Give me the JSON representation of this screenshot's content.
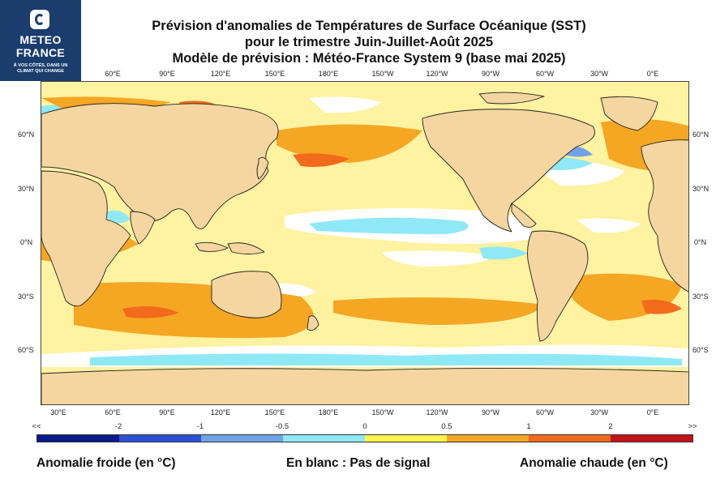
{
  "logo": {
    "brand_line1": "METEO",
    "brand_line2": "FRANCE",
    "tagline": "À VOS CÔTÉS, DANS UN CLIMAT QUI CHANGE"
  },
  "title": {
    "line1": "Prévision d'anomalies de Températures de Surface Océanique (SST)",
    "line2": "pour le trimestre Juin-Juillet-Août 2025",
    "line3": "Modèle de prévision : Météo-France System 9 (base mai 2025)"
  },
  "map": {
    "top_lon_labels": [
      "60°E",
      "90°E",
      "120°E",
      "150°E",
      "180°E",
      "150°W",
      "120°W",
      "90°W",
      "60°W",
      "30°W",
      "0°E"
    ],
    "bottom_lon_labels": [
      "30°E",
      "60°E",
      "90°E",
      "120°E",
      "150°E",
      "180°E",
      "150°W",
      "120°W",
      "90°W",
      "60°W",
      "30°W",
      "0°E"
    ],
    "left_lat_labels": [
      "60°N",
      "30°N",
      "0°N",
      "30°S",
      "60°S"
    ],
    "right_lat_labels": [
      "60°N",
      "30°N",
      "0°N",
      "30°S",
      "60°S"
    ]
  },
  "colorbar": {
    "tick_labels": [
      "<<",
      "-2",
      "-1",
      "-0.5",
      "0",
      "0.5",
      "1",
      "2",
      ">>"
    ],
    "colors": [
      "#0a1a8c",
      "#2c4fd8",
      "#6fa3e8",
      "#8fe8f5",
      "#fff54a",
      "#f5a623",
      "#f26a1b",
      "#c4121a"
    ]
  },
  "legend": {
    "cold": "Anomalie froide (en °C)",
    "blank": "En blanc : Pas de signal",
    "warm": "Anomalie chaude (en °C)"
  },
  "palette": {
    "ocean_base": "#fff2a0",
    "land": "#f5d6a0",
    "white": "#ffffff"
  }
}
